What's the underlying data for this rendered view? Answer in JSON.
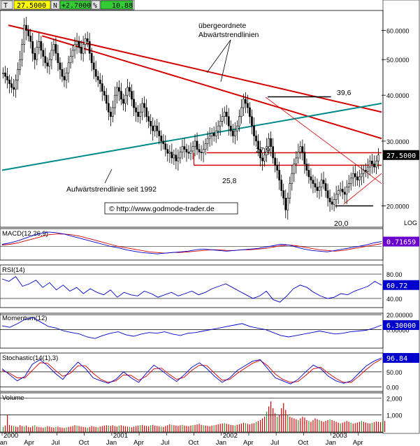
{
  "header": {
    "ticker_letter": "T",
    "last_price": "27.5000",
    "flag": "N",
    "change": "+2.7000",
    "pct_symbol": "%",
    "pct_value": "10.88"
  },
  "annotations": {
    "downtrend_title_1": "übergeordnete",
    "downtrend_title_2": "Abwärtstrendlinien",
    "uptrend_label": "Aufwärtstrendlinie seit 1992",
    "level_39_6": "39,6",
    "level_27_9": "27,9",
    "level_25_8": "25,8",
    "level_20_0": "20,0",
    "copyright": "© http://www.godmode-trader.de",
    "log_label": "LOG"
  },
  "colors": {
    "downtrend": "#d40000",
    "uptrend": "#008a8a",
    "candle": "#000000",
    "price_box": "#000000",
    "macd_value_box": "#6a00cc",
    "rsi_value_box": "#0000cc",
    "momentum_value_box": "#0000cc",
    "stoch_value_box": "#0000cc",
    "volume_bar": "#d40000",
    "volume_bar_alt": "#2a9a2a",
    "header_green": "#33cc33"
  },
  "chart_data": {
    "type": "candlestick",
    "title": "",
    "price_scale": "log",
    "price_ylim": [
      17.5,
      68
    ],
    "price_ticks": [
      "60.0000",
      "50.0000",
      "40.0000",
      "30.0000",
      "20.0000"
    ],
    "price_tick_values": [
      60,
      50,
      40,
      30,
      20
    ],
    "x_labels": [
      "2000",
      "Jan",
      "Apr",
      "Jul",
      "Oct",
      "2001",
      "Jan",
      "Apr",
      "Jul",
      "Oct",
      "2002",
      "Jan",
      "Apr",
      "Jul",
      "Oct",
      "2003",
      "Jan",
      "Apr"
    ],
    "x_label_weeks": [
      0,
      0,
      13,
      26,
      39,
      52,
      52,
      65,
      78,
      91,
      104,
      104,
      117,
      130,
      143,
      156,
      156,
      169
    ],
    "weeks_total": 180,
    "weekly_close": [
      46,
      45,
      44,
      43,
      42,
      41.5,
      44,
      47,
      50,
      55,
      62,
      60,
      58,
      56,
      52,
      50,
      54,
      56,
      53,
      51,
      49,
      48,
      50,
      53,
      55,
      52,
      49,
      47,
      45,
      44,
      46,
      49,
      51,
      53,
      55,
      56,
      54,
      52,
      55,
      57,
      56,
      52,
      49,
      47,
      45,
      44,
      43,
      41,
      40,
      38,
      36,
      35,
      37,
      40,
      42,
      41,
      39,
      38,
      40,
      42,
      41,
      39,
      37,
      36,
      35,
      36,
      38,
      37,
      35,
      34,
      33,
      32,
      33,
      32,
      31,
      30,
      29.5,
      28.5,
      27.8,
      28,
      27,
      27.5,
      26.5,
      27,
      28,
      29,
      28.5,
      28,
      27.8,
      28.2,
      29,
      30,
      28.5,
      28,
      27.9,
      28.5,
      29.5,
      30.5,
      31,
      31.5,
      31,
      32,
      33,
      34,
      35,
      36,
      35,
      33,
      32,
      31,
      32,
      33,
      35,
      37,
      39,
      38,
      37,
      35,
      33,
      31,
      30,
      28.5,
      27,
      26.5,
      27.5,
      29,
      30.5,
      29,
      27,
      25.8,
      25,
      23.5,
      22,
      21,
      19.5,
      21,
      23,
      24.5,
      26,
      27,
      28,
      29,
      28,
      26,
      25,
      24,
      23.5,
      23,
      22.5,
      22,
      22.5,
      23.5,
      23,
      22,
      21,
      20.5,
      20.2,
      20.8,
      21.5,
      22,
      22.2,
      21.8,
      21.5,
      22.5,
      23,
      23.8,
      24.5,
      24,
      23.5,
      24,
      24.5,
      25,
      24.8,
      25.5,
      26.5,
      26,
      25.5,
      26.5,
      27.5
    ],
    "levels": [
      {
        "label": "39,6",
        "value": 39.6
      },
      {
        "label": "27,9",
        "value": 27.9
      },
      {
        "label": "25,8",
        "value": 25.8
      },
      {
        "label": "20,0",
        "value": 20.0
      }
    ],
    "trendlines": [
      {
        "label": "übergeordnete Abwärtstrendlinien",
        "from": [
          3,
          62
        ],
        "to": [
          180,
          36
        ]
      },
      {
        "label": "übergeordnete Abwärtstrendlinien",
        "from": [
          19,
          58
        ],
        "to": [
          180,
          30.5
        ]
      },
      {
        "label": "Aufwärtstrendlinie seit 1992",
        "from": [
          0,
          25
        ],
        "to": [
          180,
          38
        ]
      },
      {
        "label": "",
        "from": [
          125,
          39.5
        ],
        "to": [
          180,
          23
        ]
      },
      {
        "label": "",
        "from": [
          162,
          20.2
        ],
        "to": [
          180,
          24.5
        ]
      }
    ],
    "indicators": [
      {
        "name": "MACD(12,26,9)",
        "value": "0.71659",
        "ticks": [],
        "ylim": [
          -2,
          2.6
        ],
        "series": [
          0.3,
          0.5,
          0.8,
          1.2,
          1.6,
          1.9,
          2.1,
          2.0,
          1.8,
          1.5,
          1.2,
          0.9,
          0.6,
          0.3,
          0.0,
          -0.2,
          -0.5,
          -0.7,
          -0.9,
          -1.0,
          -1.1,
          -1.0,
          -0.9,
          -0.8,
          -0.7,
          -0.5,
          -0.4,
          -0.5,
          -0.6,
          -0.7,
          -0.6,
          -0.5,
          -0.4,
          -0.3,
          -0.1,
          0.1,
          0.3,
          0.2,
          -0.1,
          -0.4,
          -0.6,
          -0.7,
          -0.8,
          -0.6,
          -0.4,
          -0.2,
          0.0,
          0.2,
          0.5,
          0.7
        ],
        "signal": [
          0.2,
          0.3,
          0.5,
          0.8,
          1.1,
          1.4,
          1.7,
          1.8,
          1.8,
          1.7,
          1.5,
          1.2,
          0.9,
          0.6,
          0.3,
          0.0,
          -0.2,
          -0.4,
          -0.6,
          -0.8,
          -0.9,
          -1.0,
          -0.9,
          -0.9,
          -0.8,
          -0.7,
          -0.6,
          -0.5,
          -0.5,
          -0.6,
          -0.6,
          -0.5,
          -0.5,
          -0.4,
          -0.3,
          -0.1,
          0.1,
          0.2,
          0.1,
          -0.1,
          -0.3,
          -0.5,
          -0.6,
          -0.7,
          -0.6,
          -0.4,
          -0.2,
          0.0,
          0.2,
          0.4
        ]
      },
      {
        "name": "RSI(14)",
        "value": "60.72",
        "ticks": [
          "80.00",
          "40.00"
        ],
        "tick_values": [
          80,
          40
        ],
        "ylim": [
          25,
          95
        ],
        "series": [
          72,
          68,
          76,
          60,
          64,
          70,
          58,
          66,
          54,
          62,
          52,
          58,
          48,
          56,
          50,
          46,
          54,
          42,
          50,
          46,
          44,
          52,
          48,
          42,
          46,
          50,
          44,
          48,
          52,
          46,
          50,
          56,
          60,
          64,
          58,
          52,
          46,
          40,
          44,
          52,
          38,
          34,
          44,
          56,
          62,
          58,
          50,
          44,
          40,
          42,
          48,
          46,
          52,
          56,
          60,
          68,
          62
        ]
      },
      {
        "name": "Momentum(12)",
        "value": "6.30000",
        "ticks": [
          "20.00000",
          "0.00000"
        ],
        "tick_values": [
          20,
          0
        ],
        "ylim": [
          -25,
          22
        ],
        "series": [
          5,
          3,
          8,
          14,
          16,
          10,
          4,
          2,
          -2,
          -4,
          -6,
          -10,
          -12,
          -8,
          -5,
          -3,
          -7,
          -9,
          -6,
          -4,
          -5,
          -3,
          -6,
          -8,
          -5,
          -4,
          -2,
          0,
          2,
          4,
          6,
          8,
          4,
          2,
          0,
          -4,
          -8,
          -10,
          -8,
          -6,
          -4,
          -2,
          -4,
          -6,
          -5,
          -3,
          -2,
          -1,
          2,
          6
        ]
      },
      {
        "name": "Stochastic(14(1),3)",
        "value": "96.84",
        "ticks": [
          "50.00",
          "0.00"
        ],
        "tick_values": [
          50,
          0
        ],
        "ylim": [
          -15,
          112
        ],
        "series": [
          60,
          40,
          20,
          35,
          75,
          90,
          70,
          45,
          25,
          55,
          82,
          60,
          30,
          20,
          12,
          25,
          50,
          30,
          15,
          45,
          72,
          55,
          35,
          18,
          40,
          65,
          80,
          60,
          35,
          15,
          30,
          55,
          70,
          85,
          90,
          60,
          30,
          20,
          10,
          25,
          50,
          72,
          60,
          35,
          20,
          12,
          20,
          45,
          70,
          85,
          96
        ],
        "signal": [
          55,
          45,
          30,
          30,
          55,
          80,
          78,
          55,
          35,
          45,
          70,
          70,
          45,
          25,
          15,
          20,
          40,
          38,
          22,
          35,
          60,
          62,
          42,
          25,
          32,
          55,
          72,
          70,
          45,
          22,
          25,
          45,
          62,
          78,
          88,
          70,
          42,
          25,
          15,
          18,
          38,
          60,
          65,
          45,
          28,
          15,
          15,
          35,
          58,
          78,
          92
        ]
      },
      {
        "name": "Volume",
        "ticks": [
          "2,000",
          "1,000"
        ],
        "tick_values": [
          2000,
          1000
        ],
        "ylim": [
          0,
          2300
        ],
        "series": [
          300,
          380,
          1000,
          420,
          380,
          350,
          320,
          300,
          400,
          350,
          320,
          380,
          300,
          280,
          350,
          400,
          320,
          300,
          280,
          260,
          300,
          350,
          320,
          280,
          260,
          300,
          320,
          280,
          260,
          240,
          280,
          300,
          320,
          350,
          400,
          380,
          350,
          320,
          300,
          280,
          260,
          300,
          350,
          320,
          300,
          280,
          320,
          350,
          380,
          400,
          380,
          360,
          400,
          350,
          320,
          380,
          400,
          360,
          340,
          320,
          300,
          280,
          320,
          350,
          380,
          400,
          420,
          380,
          360,
          340,
          400,
          420,
          380,
          360,
          340,
          320,
          300,
          350,
          400,
          450,
          420,
          400,
          380,
          360,
          400,
          420,
          380,
          360,
          340,
          380,
          400,
          420,
          450,
          480,
          420,
          400,
          380,
          360,
          340,
          380,
          400,
          420,
          450,
          480,
          500,
          520,
          480,
          450,
          420,
          400,
          380,
          420,
          450,
          500,
          550,
          520,
          480,
          450,
          500,
          520,
          600,
          650,
          700,
          800,
          900,
          1200,
          1500,
          1800,
          1400,
          1100,
          900,
          1000,
          1400,
          1700,
          1300,
          1000,
          900,
          850,
          800,
          750,
          700,
          800,
          900,
          850,
          700,
          650,
          600,
          700,
          800,
          750,
          700,
          650,
          600,
          650,
          700,
          750,
          700,
          650,
          600,
          550,
          500,
          550,
          600,
          650,
          600,
          550,
          500,
          520,
          560,
          600,
          650,
          600,
          560,
          520,
          500,
          540,
          580,
          620,
          600,
          580,
          620,
          650
        ]
      }
    ]
  }
}
